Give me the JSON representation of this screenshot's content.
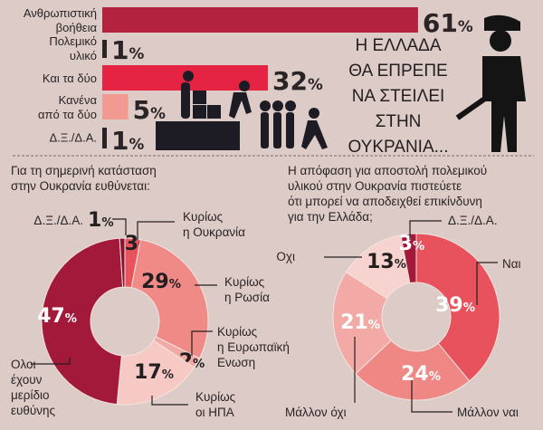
{
  "headline": [
    "Η ΕΛΛΑΔΑ",
    "ΘΑ ΕΠΡΕΠΕ",
    "ΝΑ ΣΤΕΙΛΕΙ",
    "ΣΤΗΝ",
    "ΟΥΚΡΑΝΙΑ..."
  ],
  "chart_data": [
    {
      "type": "bar",
      "orientation": "horizontal",
      "categories": [
        [
          "Ανθρωπιστική",
          "βοήθεια"
        ],
        [
          "Πολεμικό",
          "υλικό"
        ],
        [
          "Και τα δύο"
        ],
        [
          "Κανένα",
          "από τα δύο"
        ],
        [
          "Δ.Ξ./Δ.Α."
        ]
      ],
      "values": [
        61,
        1,
        32,
        5,
        1
      ],
      "value_labels": [
        "61",
        "1",
        "32",
        "5",
        "1"
      ],
      "unit": "%",
      "colors": [
        "#b3223f",
        "#2a2426",
        "#e52443",
        "#f09a92",
        "#2a2426"
      ]
    },
    {
      "type": "pie",
      "donut": true,
      "title": [
        "Για τη σημερινή κατάσταση",
        "στην Ουκρανία ευθύνεται:"
      ],
      "slices": [
        {
          "label": [
            "Κυρίως",
            "η Ουκρανία"
          ],
          "value": 3,
          "color": "#e8545e",
          "text": "dark"
        },
        {
          "label": [
            "Κυρίως",
            "η Ρωσία"
          ],
          "value": 29,
          "color": "#ef8a86",
          "text": "dark"
        },
        {
          "label": [
            "Κυρίως",
            "η Ευρωπαϊκή",
            "Ενωση"
          ],
          "value": 2,
          "color": "#f1aaa5",
          "text": "dark"
        },
        {
          "label": [
            "Κυρίως",
            "οι ΗΠΑ"
          ],
          "value": 17,
          "color": "#f6c9c4",
          "text": "dark"
        },
        {
          "label": [
            "Ολοι",
            "έχουν",
            "μερίδιο",
            "ευθύνης"
          ],
          "value": 47,
          "color": "#a3193a",
          "text": "light"
        },
        {
          "label": [
            "Δ.Ξ./Δ.Α."
          ],
          "value": 1,
          "color": "#8a1430",
          "text": "dark"
        }
      ],
      "unit": "%"
    },
    {
      "type": "pie",
      "donut": true,
      "title": [
        "Η απόφαση για αποστολή πολεμικού",
        "υλικού στην Ουκρανία πιστεύετε",
        "ότι μπορεί να αποδειχθεί επικίνδυνη",
        "για την Ελλάδα;"
      ],
      "slices": [
        {
          "label": [
            "Ναι"
          ],
          "value": 39,
          "color": "#e8525c",
          "text": "light"
        },
        {
          "label": [
            "Μάλλον ναι"
          ],
          "value": 24,
          "color": "#ef8784",
          "text": "light"
        },
        {
          "label": [
            "Μάλλον όχι"
          ],
          "value": 21,
          "color": "#f3aaa6",
          "text": "light"
        },
        {
          "label": [
            "Οχι"
          ],
          "value": 13,
          "color": "#f7d3cf",
          "text": "dark"
        },
        {
          "label": [
            "Δ.Ξ./Δ.Α."
          ],
          "value": 3,
          "color": "#a3193a",
          "text": "light"
        }
      ],
      "unit": "%"
    }
  ]
}
